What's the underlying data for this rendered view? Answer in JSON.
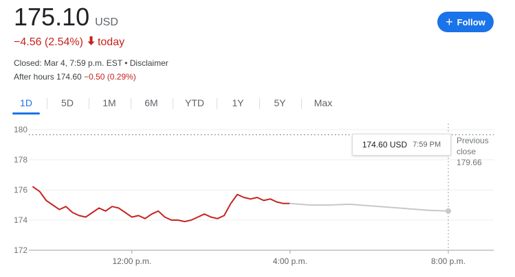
{
  "quote": {
    "price": "175.10",
    "currency": "USD",
    "change": "−4.56 (2.54%)",
    "change_period": "today",
    "closed_text": "Closed: Mar 4, 7:59 p.m. EST",
    "separator": "•",
    "disclaimer": "Disclaimer",
    "after_hours_label": "After hours 174.60",
    "after_hours_change": "−0.50 (0.29%)"
  },
  "follow_button": {
    "label": "Follow",
    "icon": "plus-icon"
  },
  "tabs": [
    {
      "label": "1D",
      "active": true
    },
    {
      "label": "5D"
    },
    {
      "label": "1M"
    },
    {
      "label": "6M"
    },
    {
      "label": "YTD"
    },
    {
      "label": "1Y"
    },
    {
      "label": "5Y"
    },
    {
      "label": "Max"
    }
  ],
  "tooltip": {
    "price": "174.60 USD",
    "time": "7:59 PM"
  },
  "previous_close": {
    "label_line1": "Previous",
    "label_line2": "close",
    "value": "179.66"
  },
  "colors": {
    "negative": "#c5221f",
    "accent": "#1a73e8",
    "after_hours_line": "#c8c8c8"
  },
  "chart_data": {
    "type": "line",
    "ylim": [
      172,
      180
    ],
    "y_ticks": [
      "180",
      "178",
      "176",
      "174",
      "172"
    ],
    "x_ticks": [
      "12:00 p.m.",
      "4:00 p.m.",
      "8:00 p.m."
    ],
    "previous_close": 179.66,
    "series": [
      {
        "segment": "regular",
        "x": [
          "9:30",
          "9:40",
          "9:50",
          "10:00",
          "10:10",
          "10:20",
          "10:30",
          "10:40",
          "10:50",
          "11:00",
          "11:10",
          "11:20",
          "11:30",
          "11:40",
          "11:50",
          "12:00",
          "12:10",
          "12:20",
          "12:30",
          "12:40",
          "12:50",
          "13:00",
          "13:10",
          "13:20",
          "13:30",
          "13:40",
          "13:50",
          "14:00",
          "14:10",
          "14:20",
          "14:30",
          "14:40",
          "14:50",
          "15:00",
          "15:10",
          "15:20",
          "15:30",
          "15:40",
          "15:50",
          "16:00"
        ],
        "values": [
          176.2,
          175.9,
          175.3,
          175.0,
          174.7,
          174.9,
          174.5,
          174.3,
          174.2,
          174.5,
          174.8,
          174.6,
          174.9,
          174.8,
          174.5,
          174.2,
          174.3,
          174.1,
          174.4,
          174.6,
          174.2,
          174.0,
          174.0,
          173.9,
          174.0,
          174.2,
          174.4,
          174.2,
          174.1,
          174.3,
          175.1,
          175.7,
          175.5,
          175.4,
          175.5,
          175.3,
          175.4,
          175.2,
          175.1,
          175.1
        ]
      },
      {
        "segment": "after_hours",
        "x": [
          "16:00",
          "16:30",
          "17:00",
          "17:30",
          "18:00",
          "18:30",
          "19:00",
          "19:30",
          "20:00"
        ],
        "values": [
          175.1,
          175.0,
          175.0,
          175.05,
          174.95,
          174.85,
          174.75,
          174.65,
          174.6
        ]
      }
    ]
  }
}
